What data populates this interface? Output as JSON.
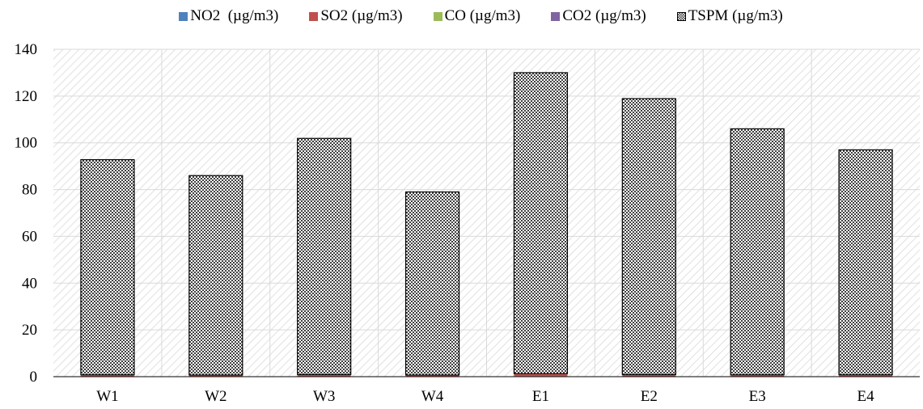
{
  "chart_data": {
    "type": "bar",
    "stacked": true,
    "categories": [
      "W1",
      "W2",
      "W3",
      "W4",
      "E1",
      "E2",
      "E3",
      "E4"
    ],
    "series": [
      {
        "name": "NO2  (µg/m3)",
        "color": "#4f81bd",
        "pattern": "solid",
        "values": [
          0.1,
          0.1,
          0.1,
          0.1,
          0.2,
          0.1,
          0.1,
          0.1
        ]
      },
      {
        "name": "SO2 (µg/m3)",
        "color": "#c0504d",
        "pattern": "solid",
        "values": [
          0.5,
          0.4,
          0.6,
          0.4,
          0.9,
          0.6,
          0.5,
          0.5
        ]
      },
      {
        "name": "CO (µg/m3)",
        "color": "#9bbb59",
        "pattern": "solid",
        "values": [
          0.1,
          0.1,
          0.1,
          0.1,
          0.1,
          0.1,
          0.1,
          0.1
        ]
      },
      {
        "name": "CO2 (µg/m3)",
        "color": "#8064a2",
        "pattern": "solid",
        "values": [
          0.1,
          0.1,
          0.1,
          0.1,
          0.1,
          0.1,
          0.1,
          0.1
        ]
      },
      {
        "name": "TSPM (µg/m3)",
        "color": "#7f7f7f",
        "pattern": "checker",
        "values": [
          92,
          85.3,
          101,
          78.3,
          128.7,
          118,
          105.2,
          96.2
        ]
      }
    ],
    "ylim": [
      0,
      140
    ],
    "yticks": [
      "0",
      "20",
      "40",
      "60",
      "80",
      "100",
      "120",
      "140"
    ],
    "grid": true,
    "legend_position": "top"
  }
}
